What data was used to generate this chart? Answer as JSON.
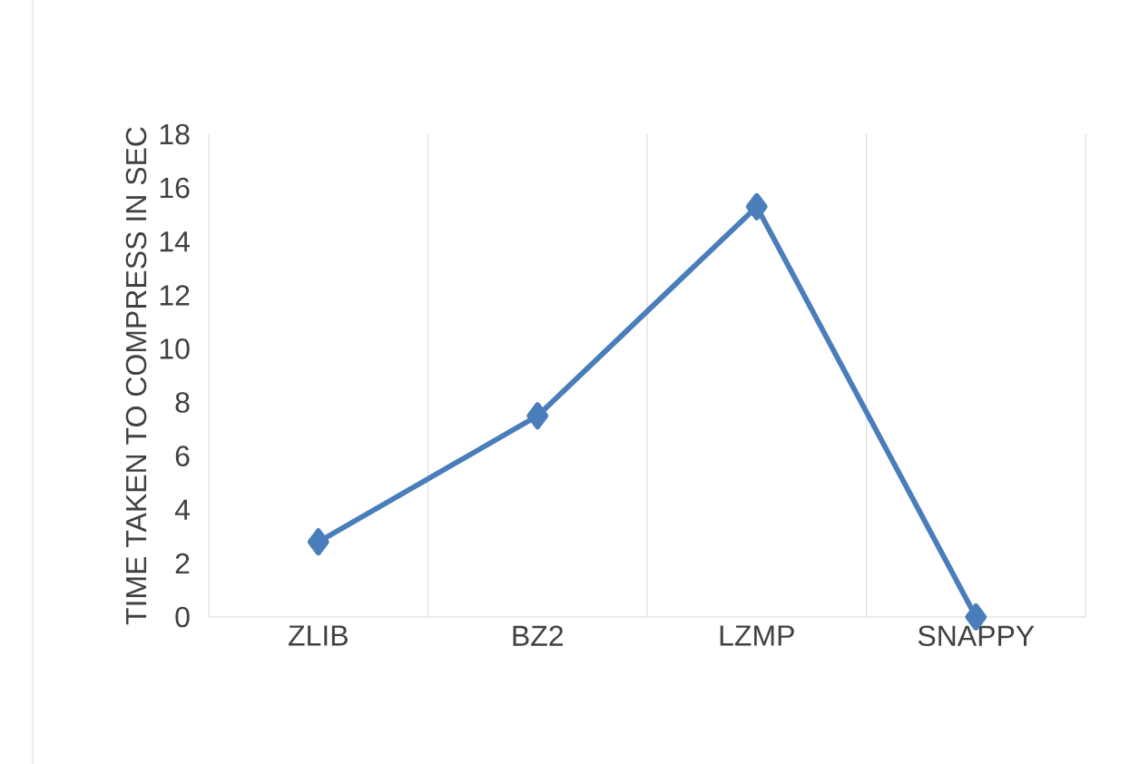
{
  "chart_data": {
    "type": "line",
    "ylabel": "TIME TAKEN TO COMPRESS IN SEC",
    "categories": [
      "ZLIB",
      "BZ2",
      "LZMP",
      "SNAPPY"
    ],
    "series": [
      {
        "color": "#4a7ebb",
        "values": [
          2.8,
          7.5,
          15.3,
          0
        ]
      }
    ],
    "ylim": [
      0,
      18
    ],
    "yticks": [
      0,
      2,
      4,
      6,
      8,
      10,
      12,
      14,
      16,
      18
    ],
    "grid": "x",
    "marker": "diamond",
    "line_style": "solid"
  }
}
